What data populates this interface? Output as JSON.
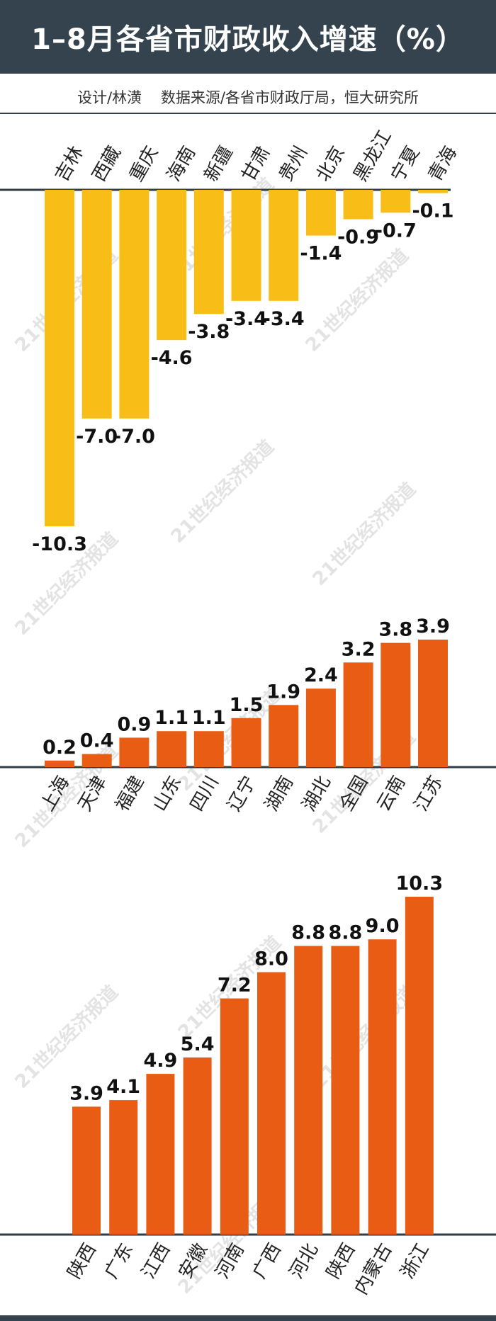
{
  "title": "1–8月各省市财政收入增速（%）",
  "credits": {
    "design": "设计/林潢",
    "source": "数据来源/各省市财政厅局，恒大研究所"
  },
  "watermark": "21世纪经济报道",
  "colors": {
    "header_bg": "#34434e",
    "negative_bar": "#f8bd16",
    "positive_bar": "#e85d13",
    "axis": "#2f3d47",
    "label": "#111111"
  },
  "chart_data": [
    {
      "type": "bar",
      "categories": [
        "吉林",
        "西藏",
        "重庆",
        "海南",
        "新疆",
        "甘肃",
        "贵州",
        "北京",
        "黑龙江",
        "宁夏",
        "青海"
      ],
      "values": [
        -10.3,
        -7.0,
        -7.0,
        -4.6,
        -3.8,
        -3.4,
        -3.4,
        -1.4,
        -0.9,
        -0.7,
        -0.1
      ],
      "value_labels": [
        "-10.3",
        "-7.0",
        "-7.0",
        "-4.6",
        "-3.8",
        "-3.4",
        "-3.4",
        "-1.4",
        "-0.9",
        "-0.7",
        "-0.1"
      ],
      "color": "#f8bd16",
      "ylim": [
        -10.3,
        0
      ]
    },
    {
      "type": "bar",
      "categories": [
        "上海",
        "天津",
        "福建",
        "山东",
        "四川",
        "辽宁",
        "湖南",
        "湖北",
        "全国",
        "云南",
        "江苏"
      ],
      "values": [
        0.2,
        0.4,
        0.9,
        1.1,
        1.1,
        1.5,
        1.9,
        2.4,
        3.2,
        3.8,
        3.9
      ],
      "value_labels": [
        "0.2",
        "0.4",
        "0.9",
        "1.1",
        "1.1",
        "1.5",
        "1.9",
        "2.4",
        "3.2",
        "3.8",
        "3.9"
      ],
      "color": "#e85d13",
      "ylim": [
        0,
        3.9
      ]
    },
    {
      "type": "bar",
      "categories": [
        "陕西",
        "广东",
        "江西",
        "安徽",
        "河南",
        "广西",
        "河北",
        "陕西",
        "内蒙古",
        "浙江"
      ],
      "values": [
        3.9,
        4.1,
        4.9,
        5.4,
        7.2,
        8.0,
        8.8,
        8.8,
        9.0,
        10.3
      ],
      "value_labels": [
        "3.9",
        "4.1",
        "4.9",
        "5.4",
        "7.2",
        "8.0",
        "8.8",
        "8.8",
        "9.0",
        "10.3"
      ],
      "color": "#e85d13",
      "ylim": [
        0,
        10.3
      ]
    }
  ]
}
